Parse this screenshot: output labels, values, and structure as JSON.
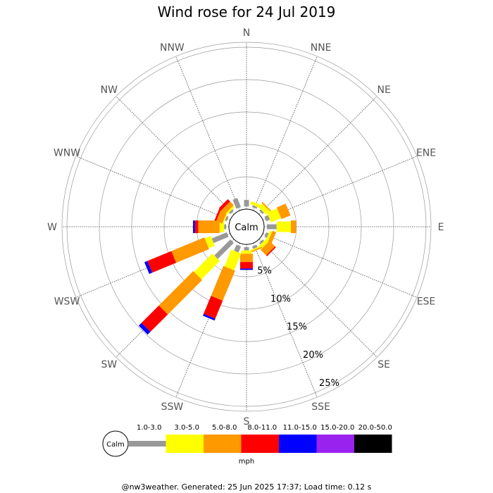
{
  "chart_data": {
    "type": "wind-rose",
    "title": "Wind rose for 24 Jul 2019",
    "center_label": "Calm",
    "directions": [
      "N",
      "NNE",
      "NE",
      "ENE",
      "E",
      "ESE",
      "SE",
      "SSE",
      "S",
      "SSW",
      "SW",
      "WSW",
      "W",
      "WNW",
      "NW",
      "NNW"
    ],
    "rings_percent": [
      5,
      10,
      15,
      20,
      25
    ],
    "ring_labels": [
      "5%",
      "10%",
      "15%",
      "20%",
      "25%"
    ],
    "bins": [
      "1.0-3.0",
      "3.0-5.0",
      "5.0-8.0",
      "8.0-11.0",
      "11.0-15.0",
      "15.0-20.0",
      "20.0-50.0"
    ],
    "bin_colors": [
      "#999999",
      "#ffff00",
      "#ff9900",
      "#ff0000",
      "#0000ff",
      "#9922ee",
      "#000000"
    ],
    "unit": "mph",
    "series": [
      {
        "direction": "N",
        "values": [
          1.0,
          0,
          0,
          0,
          0,
          0,
          0
        ]
      },
      {
        "direction": "NNE",
        "values": [
          0.3,
          0.5,
          0,
          0,
          0,
          0,
          0
        ]
      },
      {
        "direction": "NE",
        "values": [
          0.3,
          0.8,
          0.2,
          0,
          0,
          0,
          0
        ]
      },
      {
        "direction": "ENE",
        "values": [
          0.6,
          1.7,
          1.5,
          0,
          0,
          0,
          0
        ]
      },
      {
        "direction": "E",
        "values": [
          1.5,
          2.2,
          0.8,
          0,
          0,
          0,
          0
        ]
      },
      {
        "direction": "ESE",
        "values": [
          0.4,
          0.4,
          0.6,
          0,
          0,
          0,
          0
        ]
      },
      {
        "direction": "SE",
        "values": [
          0.3,
          0.6,
          1.2,
          0.2,
          0,
          0,
          0
        ]
      },
      {
        "direction": "SSE",
        "values": [
          0.4,
          0.2,
          0.2,
          0,
          0,
          0,
          0
        ]
      },
      {
        "direction": "S",
        "values": [
          0.5,
          0.5,
          1.3,
          1.0,
          0.2,
          0,
          0
        ]
      },
      {
        "direction": "SSW",
        "values": [
          1.0,
          2.8,
          5.0,
          3.0,
          0.3,
          0,
          0
        ]
      },
      {
        "direction": "SW",
        "values": [
          3.5,
          4.0,
          7.5,
          3.8,
          0.6,
          0,
          0
        ]
      },
      {
        "direction": "WSW",
        "values": [
          2.5,
          1.0,
          5.5,
          4.0,
          0.5,
          0,
          0
        ]
      },
      {
        "direction": "W",
        "values": [
          0.3,
          0.7,
          3.3,
          0.5,
          0.3,
          0,
          0
        ]
      },
      {
        "direction": "WNW",
        "values": [
          0.3,
          0.2,
          1.0,
          0.3,
          0,
          0,
          0
        ]
      },
      {
        "direction": "NW",
        "values": [
          0.3,
          0.3,
          0.8,
          0.5,
          0,
          0,
          0
        ]
      },
      {
        "direction": "NNW",
        "values": [
          1.5,
          0,
          0,
          0,
          0,
          0,
          0
        ]
      }
    ]
  },
  "footer": "@nw3weather. Generated: 25 Jun 2025 17:37; Load time: 0.12 s"
}
